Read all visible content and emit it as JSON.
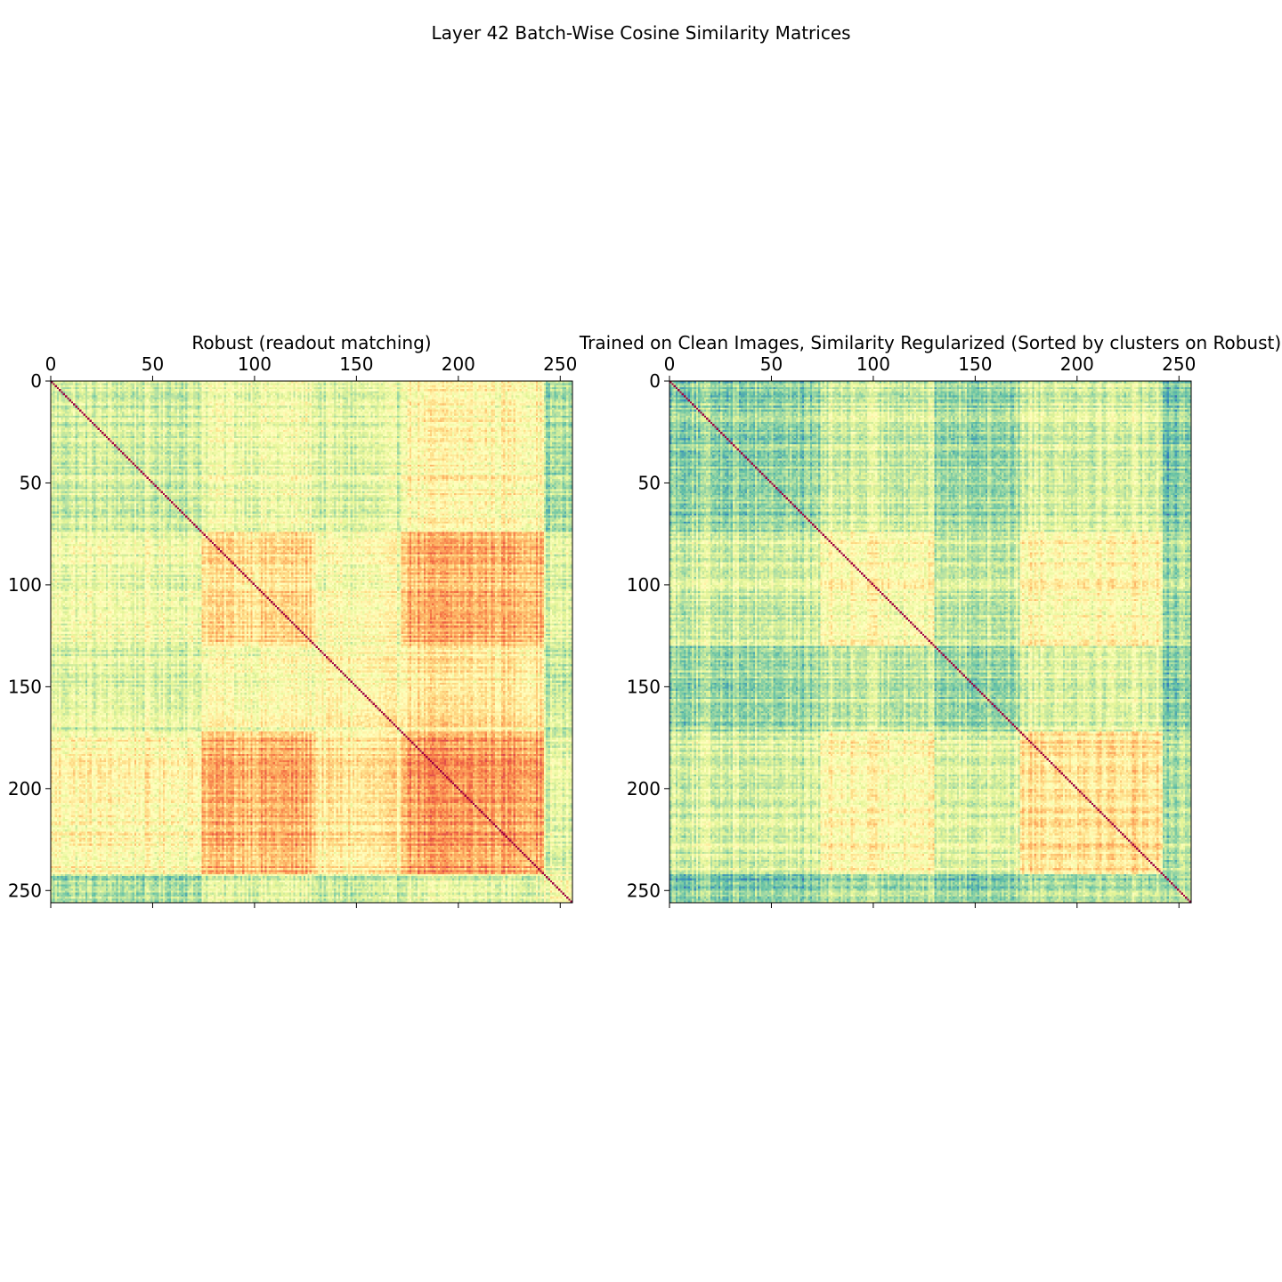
{
  "figure": {
    "title": "Layer 42 Batch-Wise Cosine Similarity Matrices"
  },
  "chart_data": [
    {
      "type": "heatmap",
      "title": "Robust (readout matching)",
      "xlabel": "",
      "ylabel": "",
      "n": 256,
      "xlim": [
        0,
        256
      ],
      "ylim": [
        256,
        0
      ],
      "x_ticks": [
        0,
        50,
        100,
        150,
        200,
        250
      ],
      "y_ticks": [
        0,
        50,
        100,
        150,
        200,
        250
      ],
      "x_axis_position": "top",
      "y_axis_inverted": true,
      "colormap": "Spectral_r",
      "grid": false,
      "diagonal_value": 1.0,
      "cluster_boundaries": [
        0,
        74,
        130,
        172,
        242,
        256
      ],
      "block_similarity": [
        [
          0.38,
          0.45,
          0.4,
          0.52,
          0.3
        ],
        [
          0.45,
          0.6,
          0.48,
          0.68,
          0.4
        ],
        [
          0.4,
          0.48,
          0.5,
          0.56,
          0.34
        ],
        [
          0.52,
          0.68,
          0.56,
          0.72,
          0.4
        ],
        [
          0.3,
          0.4,
          0.34,
          0.4,
          0.45
        ]
      ]
    },
    {
      "type": "heatmap",
      "title": "Trained on Clean Images, Similarity Regularized (Sorted by clusters on Robust)",
      "xlabel": "",
      "ylabel": "",
      "n": 256,
      "xlim": [
        0,
        256
      ],
      "ylim": [
        256,
        0
      ],
      "x_ticks": [
        0,
        50,
        100,
        150,
        200,
        250
      ],
      "y_ticks": [
        0,
        50,
        100,
        150,
        200,
        250
      ],
      "x_axis_position": "top",
      "y_axis_inverted": true,
      "colormap": "Spectral_r",
      "grid": false,
      "diagonal_value": 1.0,
      "cluster_boundaries": [
        0,
        74,
        130,
        172,
        242,
        256
      ],
      "block_similarity": [
        [
          0.28,
          0.38,
          0.3,
          0.4,
          0.24
        ],
        [
          0.38,
          0.5,
          0.36,
          0.52,
          0.3
        ],
        [
          0.3,
          0.36,
          0.3,
          0.42,
          0.26
        ],
        [
          0.4,
          0.52,
          0.42,
          0.6,
          0.32
        ],
        [
          0.24,
          0.3,
          0.26,
          0.32,
          0.3
        ]
      ]
    }
  ]
}
